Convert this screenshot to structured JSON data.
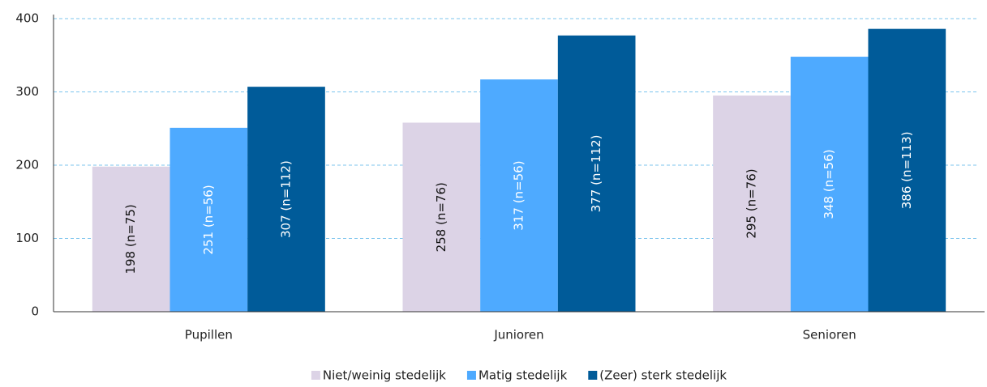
{
  "chart_data": {
    "type": "bar",
    "categories": [
      "Pupillen",
      "Junioren",
      "Senioren"
    ],
    "series": [
      {
        "name": "Niet/weinig stedelijk",
        "color": "#dcd3e6",
        "values": [
          198,
          258,
          295
        ],
        "value_labels": [
          "198 (n=75)",
          "258 (n=76)",
          "295 (n=76)"
        ]
      },
      {
        "name": "Matig stedelijk",
        "color": "#4eaaff",
        "values": [
          251,
          317,
          348
        ],
        "value_labels": [
          "251 (n=56)",
          "317 (n=56)",
          "348 (n=56)"
        ]
      },
      {
        "name": "(Zeer) sterk stedelijk",
        "color": "#005b99",
        "values": [
          307,
          377,
          386
        ],
        "value_labels": [
          "307 (n=112)",
          "377 (n=112)",
          "386 (n=113)"
        ]
      }
    ],
    "ylim": [
      0,
      400
    ],
    "yticks": [
      0,
      100,
      200,
      300,
      400
    ],
    "grid": true
  }
}
